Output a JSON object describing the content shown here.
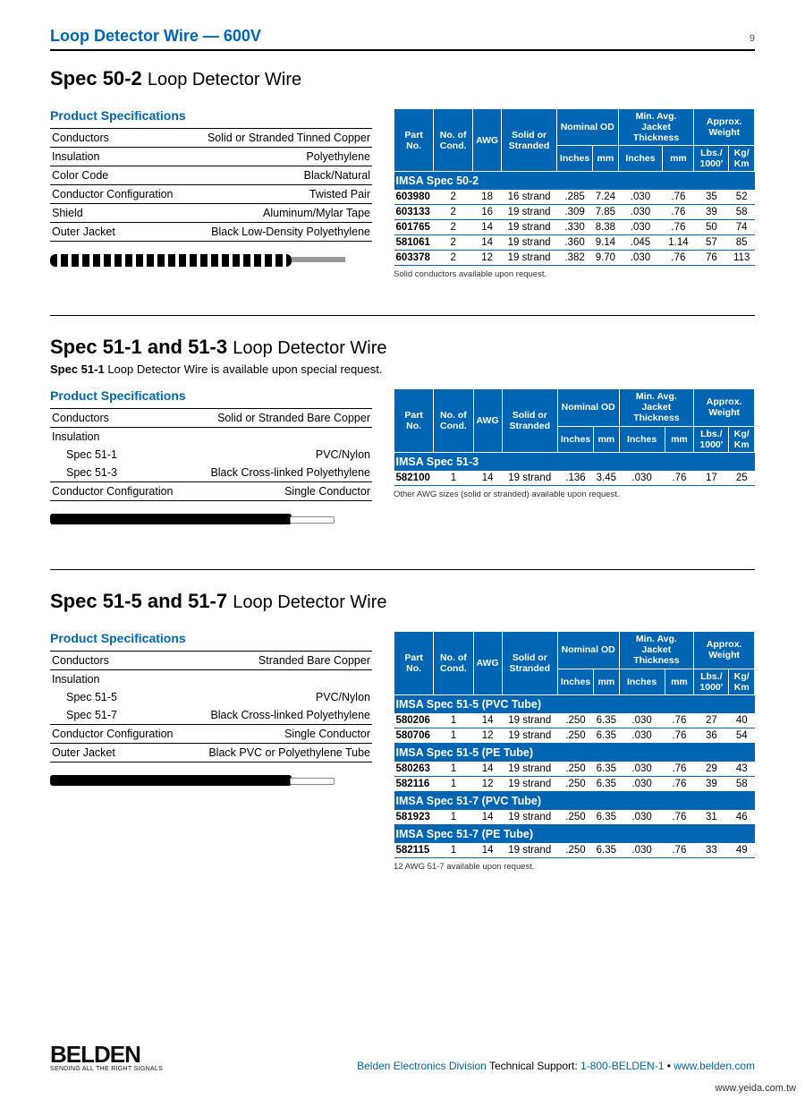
{
  "header": {
    "title": "Loop Detector Wire — 600V",
    "page": "9"
  },
  "table_headers": {
    "part": "Part No.",
    "cond": "No. of Cond.",
    "awg": "AWG",
    "strand": "Solid or Stranded",
    "nomod": "Nominal OD",
    "thick": "Min. Avg. Jacket Thickness",
    "weight": "Approx. Weight",
    "in": "Inches",
    "mm": "mm",
    "lbs": "Lbs./ 1000'",
    "kg": "Kg/ Km"
  },
  "spec502": {
    "title_bold": "Spec 50-2",
    "title_light": "Loop Detector Wire",
    "ps_title": "Product Specifications",
    "ps": [
      [
        "Conductors",
        "Solid or Stranded Tinned Copper"
      ],
      [
        "Insulation",
        "Polyethylene"
      ],
      [
        "Color Code",
        "Black/Natural"
      ],
      [
        "Conductor Configuration",
        "Twisted Pair"
      ],
      [
        "Shield",
        "Aluminum/Mylar Tape"
      ],
      [
        "Outer Jacket",
        "Black Low-Density Polyethylene"
      ]
    ],
    "section_label": "IMSA Spec 50-2",
    "rows": [
      [
        "603980",
        "2",
        "18",
        "16 strand",
        ".285",
        "7.24",
        ".030",
        ".76",
        "35",
        "52"
      ],
      [
        "603133",
        "2",
        "16",
        "19 strand",
        ".309",
        "7.85",
        ".030",
        ".76",
        "39",
        "58"
      ],
      [
        "601765",
        "2",
        "14",
        "19 strand",
        ".330",
        "8.38",
        ".030",
        ".76",
        "50",
        "74"
      ],
      [
        "581061",
        "2",
        "14",
        "19 strand",
        ".360",
        "9.14",
        ".045",
        "1.14",
        "57",
        "85"
      ],
      [
        "603378",
        "2",
        "12",
        "19 strand",
        ".382",
        "9.70",
        ".030",
        ".76",
        "76",
        "113"
      ]
    ],
    "note": "Solid conductors available upon request."
  },
  "spec51_13": {
    "title_bold": "Spec 51-1 and 51-3",
    "title_light": "Loop Detector Wire",
    "sub": "Spec 51-1 Loop Detector Wire is available upon special request.",
    "sub_bold": "Spec 51-1",
    "sub_rest": " Loop Detector Wire is available upon special request.",
    "ps_title": "Product Specifications",
    "ps_conductors": [
      "Conductors",
      "Solid or Stranded Bare Copper"
    ],
    "ps_ins_label": "Insulation",
    "ps_ins_rows": [
      [
        "Spec 51-1",
        "PVC/Nylon"
      ],
      [
        "Spec 51-3",
        "Black Cross-linked Polyethylene"
      ]
    ],
    "ps_conf": [
      "Conductor Configuration",
      "Single Conductor"
    ],
    "section_label": "IMSA Spec 51-3",
    "rows": [
      [
        "582100",
        "1",
        "14",
        "19 strand",
        ".136",
        "3.45",
        ".030",
        ".76",
        "17",
        "25"
      ]
    ],
    "note": "Other AWG sizes (solid or stranded) available upon request."
  },
  "spec51_57": {
    "title_bold": "Spec 51-5 and 51-7",
    "title_light": "Loop Detector Wire",
    "ps_title": "Product Specifications",
    "ps_conductors": [
      "Conductors",
      "Stranded Bare Copper"
    ],
    "ps_ins_label": "Insulation",
    "ps_ins_rows": [
      [
        "Spec 51-5",
        "PVC/Nylon"
      ],
      [
        "Spec 51-7",
        "Black Cross-linked Polyethylene"
      ]
    ],
    "ps_conf": [
      "Conductor Configuration",
      "Single Conductor"
    ],
    "ps_outer": [
      "Outer Jacket",
      "Black PVC or Polyethylene Tube"
    ],
    "sections": [
      {
        "label": "IMSA Spec 51-5 (PVC Tube)",
        "rows": [
          [
            "580206",
            "1",
            "14",
            "19 strand",
            ".250",
            "6.35",
            ".030",
            ".76",
            "27",
            "40"
          ],
          [
            "580706",
            "1",
            "12",
            "19 strand",
            ".250",
            "6.35",
            ".030",
            ".76",
            "36",
            "54"
          ]
        ]
      },
      {
        "label": "IMSA Spec 51-5 (PE Tube)",
        "rows": [
          [
            "580263",
            "1",
            "14",
            "19 strand",
            ".250",
            "6.35",
            ".030",
            ".76",
            "29",
            "43"
          ],
          [
            "582116",
            "1",
            "12",
            "19 strand",
            ".250",
            "6.35",
            ".030",
            ".76",
            "39",
            "58"
          ]
        ]
      },
      {
        "label": "IMSA Spec 51-7 (PVC Tube)",
        "rows": [
          [
            "581923",
            "1",
            "14",
            "19 strand",
            ".250",
            "6.35",
            ".030",
            ".76",
            "31",
            "46"
          ]
        ]
      },
      {
        "label": "IMSA Spec 51-7 (PE Tube)",
        "rows": [
          [
            "582115",
            "1",
            "14",
            "19 strand",
            ".250",
            "6.35",
            ".030",
            ".76",
            "33",
            "49"
          ]
        ]
      }
    ],
    "note": "12 AWG 51-7 available upon request."
  },
  "footer": {
    "logo": "BELDEN",
    "tag": "SENDING ALL THE RIGHT SIGNALS",
    "division": "Belden Electronics Division",
    "support_label": " Technical Support: ",
    "phone": "1-800-BELDEN-1",
    "sep": " • ",
    "url": "www.belden.com",
    "watermark": "www.yeida.com.tw"
  }
}
